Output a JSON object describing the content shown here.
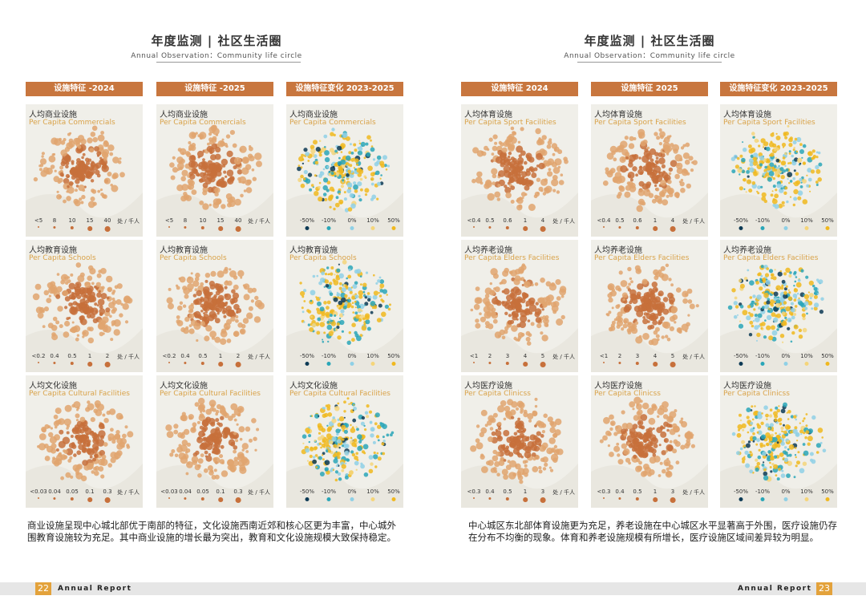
{
  "colors": {
    "accent": "#c8763e",
    "orange_dot": "#c7703b",
    "light_orange": "#e0a56e",
    "yellow": "#f0b81f",
    "teal": "#2aa6b8",
    "light_blue": "#8fd0e6",
    "dark": "#0d3a55",
    "page_num_bg": "#e3a23b"
  },
  "left": {
    "title": "年度监测 | 社区生活圈",
    "subtitle": "Annual Observation：Community life circle",
    "headers": [
      "设施特征 -2024",
      "设施特征 -2025",
      "设施特征变化 2023-2025"
    ],
    "rows": [
      {
        "cn": "人均商业设施",
        "en": "Per Capita Commercials",
        "scale": [
          "<5",
          "8",
          "10",
          "15",
          "40"
        ],
        "unit": "处 / 千人"
      },
      {
        "cn": "人均教育设施",
        "en": "Per Capita Schools",
        "scale": [
          "<0.2",
          "0.4",
          "0.5",
          "1",
          "2"
        ],
        "unit": "处 / 千人"
      },
      {
        "cn": "人均文化设施",
        "en": "Per Capita Cultural Facilities",
        "scale": [
          "<0.03",
          "0.04",
          "0.05",
          "0.1",
          "0.3"
        ],
        "unit": "处 / 千人"
      }
    ],
    "change_scale": [
      "-50%",
      "-10%",
      "0%",
      "10%",
      "50%"
    ],
    "paragraph": "商业设施呈现中心城北部优于南部的特征，文化设施西南近郊和核心区更为丰富，中心城外围教育设施较为充足。其中商业设施的增长最为突出，教育和文化设施规模大致保持稳定。",
    "page_number": "22",
    "footer": "Annual Report"
  },
  "right": {
    "title": "年度监测 | 社区生活圈",
    "subtitle": "Annual Observation：Community life circle",
    "headers": [
      "设施特征 2024",
      "设施特征  2025",
      "设施特征变化 2023-2025"
    ],
    "rows": [
      {
        "cn": "人均体育设施",
        "en": "Per Capita Sport Facilities",
        "scale": [
          "<0.4",
          "0.5",
          "0.6",
          "1",
          "4"
        ],
        "unit": "处 / 千人"
      },
      {
        "cn": "人均养老设施",
        "en": "Per Capita Elders Facilities",
        "scale": [
          "<1",
          "2",
          "3",
          "4",
          "5"
        ],
        "unit": "处 / 千人"
      },
      {
        "cn": "人均医疗设施",
        "en": "Per Capita Clinicss",
        "scale": [
          "<0.3",
          "0.4",
          "0.5",
          "1",
          "3"
        ],
        "unit": "处 / 千人"
      }
    ],
    "change_scale": [
      "-50%",
      "-10%",
      "0%",
      "10%",
      "50%"
    ],
    "paragraph": "中心城区东北部体育设施更为充足，养老设施在中心城区水平显著高于外围，医疗设施仍存在分布不均衡的现象。体育和养老设施规模有所增长，医疗设施区域间差异较为明显。",
    "page_number": "23",
    "footer": "Annual Report"
  }
}
